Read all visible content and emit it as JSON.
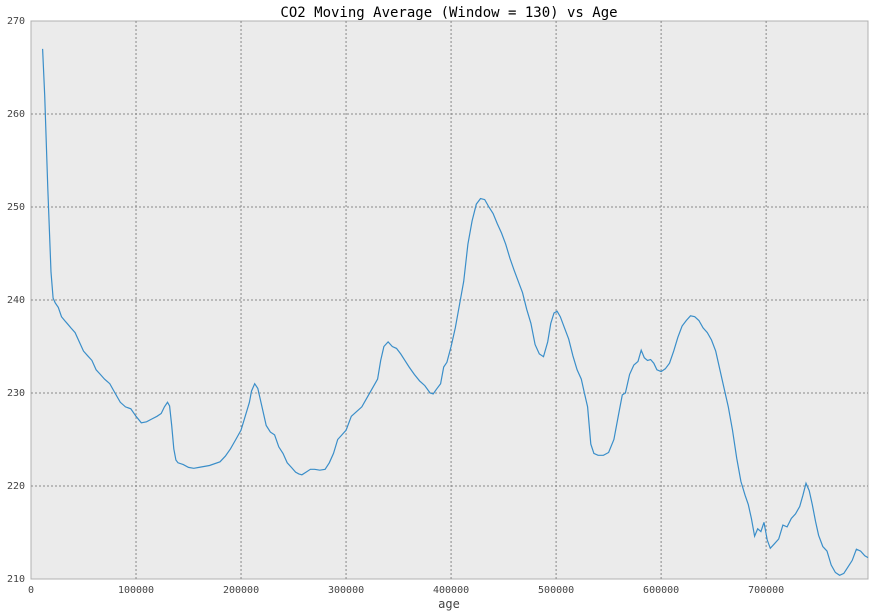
{
  "chart_data": {
    "type": "line",
    "title": "CO2 Moving Average (Window = 130) vs Age",
    "xlabel": "age",
    "ylabel": "",
    "xlim": [
      0,
      797000
    ],
    "ylim": [
      210,
      270
    ],
    "xticks": [
      0,
      100000,
      200000,
      300000,
      400000,
      500000,
      600000,
      700000
    ],
    "xtick_labels": [
      "0",
      "100000",
      "200000",
      "300000",
      "400000",
      "500000",
      "600000",
      "700000"
    ],
    "yticks": [
      210,
      220,
      230,
      240,
      250,
      260,
      270
    ],
    "ytick_labels": [
      "210",
      "220",
      "230",
      "240",
      "250",
      "260",
      "270"
    ],
    "grid": true,
    "series": [
      {
        "color": "#3a8ec9",
        "x": [
          11000,
          13000,
          16000,
          19000,
          21000,
          23000,
          26000,
          29000,
          32000,
          35000,
          38000,
          42000,
          46000,
          50000,
          54000,
          58000,
          62000,
          66000,
          70000,
          75000,
          80000,
          85000,
          90000,
          95000,
          100000,
          105000,
          110000,
          115000,
          120000,
          124000,
          127000,
          130000,
          132000,
          134000,
          136000,
          138000,
          140000,
          145000,
          150000,
          155000,
          160000,
          170000,
          180000,
          185000,
          190000,
          195000,
          200000,
          204000,
          208000,
          210000,
          213000,
          216000,
          220000,
          224000,
          228000,
          232000,
          236000,
          240000,
          244000,
          248000,
          252000,
          255000,
          258000,
          262000,
          266000,
          270000,
          275000,
          280000,
          284000,
          288000,
          292000,
          296000,
          300000,
          305000,
          310000,
          315000,
          320000,
          325000,
          330000,
          333000,
          336000,
          340000,
          344000,
          348000,
          352000,
          356000,
          360000,
          365000,
          370000,
          375000,
          380000,
          383000,
          386000,
          390000,
          393000,
          396000,
          400000,
          404000,
          408000,
          412000,
          416000,
          420000,
          424000,
          428000,
          432000,
          436000,
          440000,
          444000,
          448000,
          452000,
          456000,
          460000,
          464000,
          468000,
          472000,
          476000,
          480000,
          484000,
          488000,
          492000,
          495000,
          498000,
          501000,
          504000,
          508000,
          512000,
          516000,
          520000,
          524000,
          527000,
          530000,
          533000,
          536000,
          540000,
          545000,
          550000,
          555000,
          560000,
          563000,
          566000,
          570000,
          574000,
          578000,
          581000,
          584000,
          587000,
          590000,
          593000,
          596000,
          600000,
          604000,
          608000,
          612000,
          616000,
          620000,
          624000,
          628000,
          632000,
          636000,
          640000,
          644000,
          648000,
          652000,
          656000,
          660000,
          664000,
          668000,
          672000,
          676000,
          680000,
          683000,
          686000,
          689000,
          692000,
          695000,
          698000,
          701000,
          704000,
          708000,
          712000,
          716000,
          720000,
          724000,
          728000,
          732000,
          735000,
          738000,
          741000,
          744000,
          747000,
          750000,
          754000,
          758000,
          762000,
          766000,
          770000,
          774000,
          778000,
          782000,
          786000,
          790000,
          794000,
          797000
        ],
        "y": [
          267.0,
          262.0,
          252.0,
          243.0,
          240.2,
          239.7,
          239.2,
          238.2,
          237.8,
          237.4,
          237.0,
          236.5,
          235.5,
          234.5,
          234.0,
          233.5,
          232.5,
          232.0,
          231.5,
          231.0,
          230.0,
          229.0,
          228.5,
          228.3,
          227.5,
          226.8,
          226.9,
          227.2,
          227.5,
          227.8,
          228.5,
          229.0,
          228.6,
          226.5,
          224.0,
          222.8,
          222.5,
          222.3,
          222.0,
          221.9,
          222.0,
          222.2,
          222.6,
          223.2,
          224.0,
          225.0,
          226.0,
          227.5,
          229.0,
          230.2,
          231.0,
          230.5,
          228.5,
          226.5,
          225.8,
          225.5,
          224.2,
          223.5,
          222.5,
          222.0,
          221.5,
          221.3,
          221.2,
          221.5,
          221.8,
          221.8,
          221.7,
          221.8,
          222.5,
          223.5,
          225.0,
          225.5,
          226.0,
          227.5,
          228.0,
          228.5,
          229.5,
          230.5,
          231.5,
          233.5,
          235.0,
          235.5,
          235.0,
          234.8,
          234.2,
          233.5,
          232.8,
          232.0,
          231.3,
          230.8,
          230.0,
          229.9,
          230.4,
          231.0,
          232.8,
          233.3,
          235.0,
          237.0,
          239.5,
          242.0,
          246.0,
          248.5,
          250.3,
          250.9,
          250.8,
          250.0,
          249.3,
          248.2,
          247.2,
          246.0,
          244.5,
          243.2,
          242.0,
          240.8,
          239.0,
          237.5,
          235.2,
          234.2,
          233.9,
          235.5,
          237.5,
          238.6,
          238.8,
          238.2,
          237.0,
          235.8,
          234.0,
          232.5,
          231.5,
          230.0,
          228.5,
          224.5,
          223.5,
          223.3,
          223.3,
          223.6,
          225.0,
          228.0,
          229.8,
          230.0,
          232.0,
          233.0,
          233.4,
          234.6,
          233.8,
          233.5,
          233.6,
          233.2,
          232.5,
          232.3,
          232.6,
          233.2,
          234.5,
          236.0,
          237.2,
          237.8,
          238.3,
          238.2,
          237.8,
          237.0,
          236.5,
          235.7,
          234.5,
          232.5,
          230.5,
          228.5,
          226.0,
          223.0,
          220.5,
          219.0,
          218.0,
          216.5,
          214.6,
          215.4,
          215.1,
          216.1,
          214.2,
          213.3,
          213.8,
          214.3,
          215.8,
          215.6,
          216.5,
          217.0,
          217.8,
          219.0,
          220.3,
          219.5,
          218.0,
          216.2,
          214.7,
          213.5,
          213.0,
          211.5,
          210.7,
          210.4,
          210.6,
          211.3,
          212.0,
          213.2,
          213.0,
          212.5,
          212.3
        ]
      }
    ]
  }
}
